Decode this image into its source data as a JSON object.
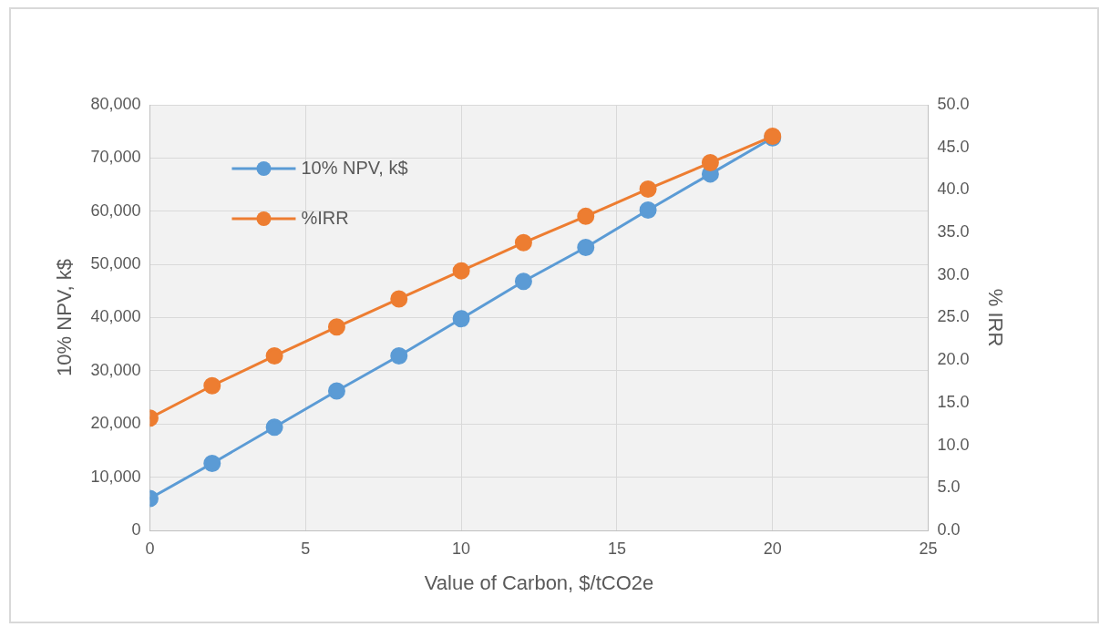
{
  "chart_data": {
    "type": "line",
    "xlabel": "Value of Carbon, $/tCO2e",
    "ylabel": "10% NPV, k$",
    "y2label": "% IRR",
    "x": [
      0,
      2,
      4,
      6,
      8,
      10,
      12,
      14,
      16,
      18,
      20
    ],
    "series": [
      {
        "name": "10% NPV, k$",
        "color": "#5b9bd5",
        "values": [
          6000,
          12600,
          19400,
          26200,
          32800,
          39800,
          46800,
          53200,
          60200,
          67000,
          73800
        ]
      },
      {
        "name": "%IRR",
        "color": "#ed7d31",
        "axis": "y2",
        "values": [
          13.2,
          17.0,
          20.5,
          23.9,
          27.2,
          30.5,
          33.8,
          36.9,
          40.1,
          43.2,
          46.3
        ]
      }
    ],
    "xlim": [
      0,
      25
    ],
    "xticks": [
      0,
      5,
      10,
      15,
      20,
      25
    ],
    "ylim": [
      0,
      80000
    ],
    "yticks": [
      0,
      {
        "value": 10000,
        "label": "10,000"
      },
      {
        "value": 20000,
        "label": "20,000"
      },
      {
        "value": 30000,
        "label": "30,000"
      },
      {
        "value": 40000,
        "label": "40,000"
      },
      {
        "value": 50000,
        "label": "50,000"
      },
      {
        "value": 60000,
        "label": "60,000"
      },
      {
        "value": 70000,
        "label": "70,000"
      },
      {
        "value": 80000,
        "label": "80,000"
      }
    ],
    "y2lim": [
      0,
      50
    ],
    "y2ticks": [
      {
        "value": 0,
        "label": "0.0"
      },
      {
        "value": 5,
        "label": "5.0"
      },
      {
        "value": 10,
        "label": "10.0"
      },
      {
        "value": 15,
        "label": "15.0"
      },
      {
        "value": 20,
        "label": "20.0"
      },
      {
        "value": 25,
        "label": "25.0"
      },
      {
        "value": 30,
        "label": "30.0"
      },
      {
        "value": 35,
        "label": "35.0"
      },
      {
        "value": 40,
        "label": "40.0"
      },
      {
        "value": 45,
        "label": "45.0"
      },
      {
        "value": 50,
        "label": "50.0"
      }
    ],
    "grid": true,
    "legend": "top left",
    "marker": "circle",
    "line_style": "solid"
  }
}
